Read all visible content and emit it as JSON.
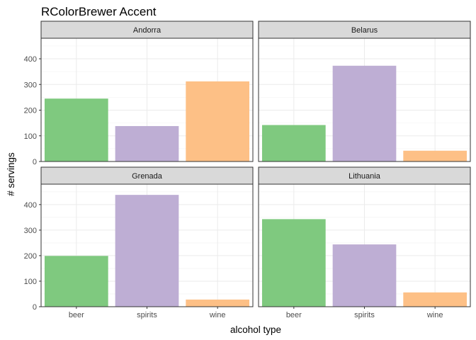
{
  "chart_data": {
    "type": "bar",
    "title": "RColorBrewer Accent",
    "xlabel": "alcohol type",
    "ylabel": "# servings",
    "categories": [
      "beer",
      "spirits",
      "wine"
    ],
    "colors": [
      "#7FC97F",
      "#BEAED4",
      "#FDC086"
    ],
    "ylim": [
      0,
      480
    ],
    "yticks": [
      0,
      100,
      200,
      300,
      400
    ],
    "grid": true,
    "legend": "none",
    "facets": [
      {
        "name": "Andorra",
        "values": [
          245,
          138,
          312
        ]
      },
      {
        "name": "Belarus",
        "values": [
          142,
          373,
          42
        ]
      },
      {
        "name": "Grenada",
        "values": [
          199,
          438,
          28
        ]
      },
      {
        "name": "Lithuania",
        "values": [
          343,
          244,
          56
        ]
      }
    ]
  }
}
